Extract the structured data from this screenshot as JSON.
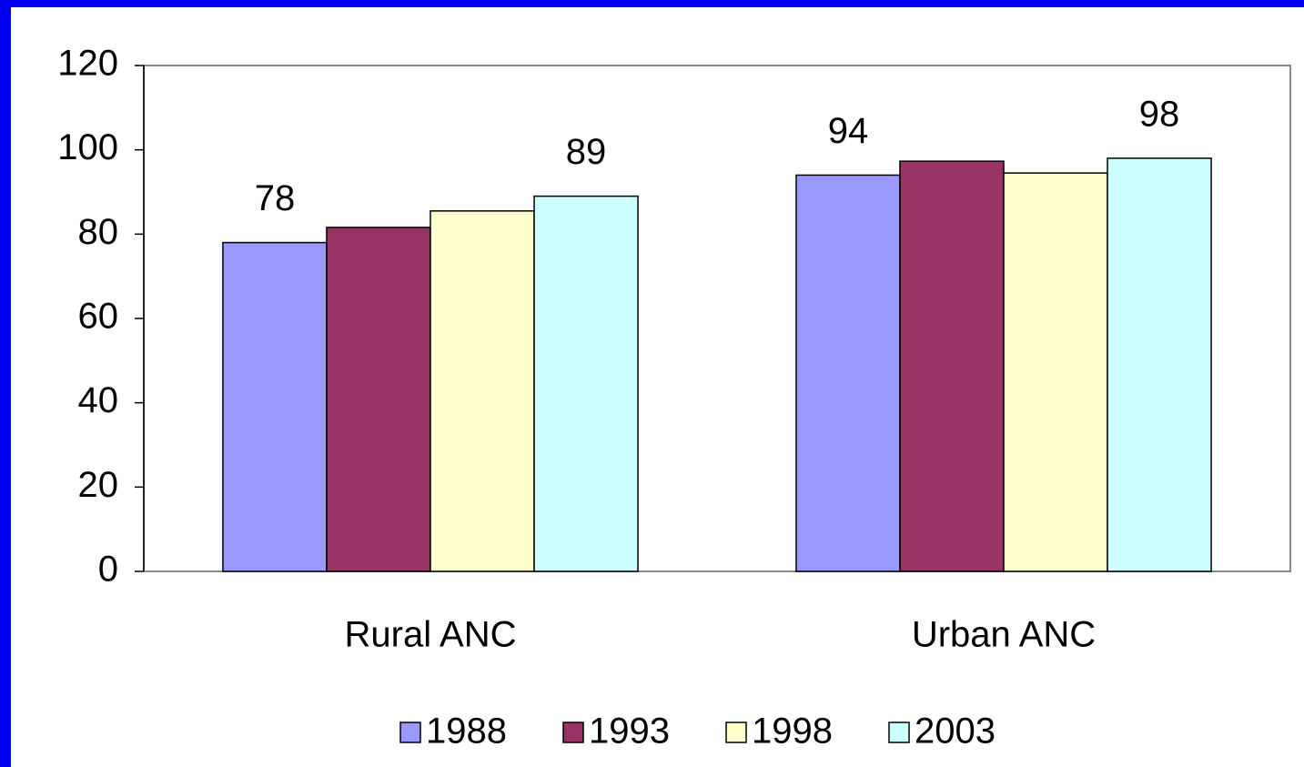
{
  "chart_data": {
    "type": "bar",
    "categories": [
      "Rural ANC",
      "Urban ANC"
    ],
    "series": [
      {
        "name": "1988",
        "color": "#9999ff",
        "values": [
          78,
          94
        ],
        "show_labels": true
      },
      {
        "name": "1993",
        "color": "#993366",
        "values": [
          81.6,
          97.3
        ],
        "show_labels": false
      },
      {
        "name": "1998",
        "color": "#ffffcc",
        "values": [
          85.5,
          94.5
        ],
        "show_labels": false
      },
      {
        "name": "2003",
        "color": "#ccffff",
        "values": [
          89,
          98
        ],
        "show_labels": true
      }
    ],
    "ylim": [
      0,
      120
    ],
    "yticks": [
      0,
      20,
      40,
      60,
      80,
      100,
      120
    ],
    "grid": false,
    "legend": "bottom"
  }
}
